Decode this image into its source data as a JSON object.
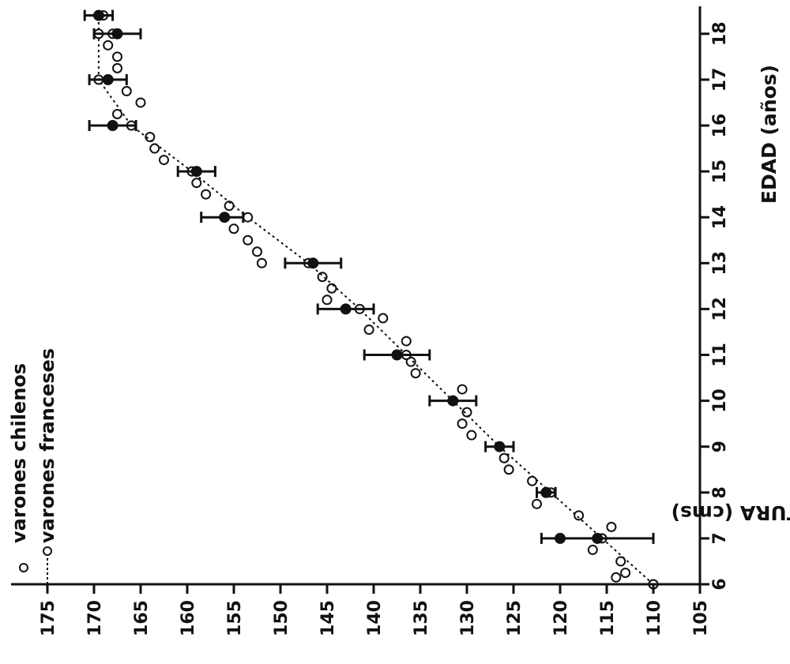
{
  "chart_data": {
    "type": "scatter",
    "orientation": "rotated-90-clockwise",
    "xlabel": "EDAD (años)",
    "ylabel": "ESTATURA (cms)",
    "x_ticks": [
      6,
      7,
      8,
      9,
      10,
      11,
      12,
      13,
      14,
      15,
      16,
      17,
      18
    ],
    "y_ticks": [
      105,
      110,
      115,
      120,
      125,
      130,
      135,
      140,
      145,
      150,
      155,
      160,
      165,
      170,
      175
    ],
    "xlim": [
      6,
      18.5
    ],
    "ylim": [
      105,
      176.5
    ],
    "legend": [
      {
        "label": "varones chilenos",
        "marker": "open-circle"
      },
      {
        "label": "varones franceses",
        "marker": "open-circle-dashed-line"
      }
    ],
    "series": [
      {
        "name": "varones chilenos",
        "marker": "open-circle",
        "points": [
          {
            "x": 6.0,
            "y": 110.0
          },
          {
            "x": 6.15,
            "y": 114.0
          },
          {
            "x": 6.25,
            "y": 113.0
          },
          {
            "x": 6.5,
            "y": 113.5
          },
          {
            "x": 6.75,
            "y": 116.5
          },
          {
            "x": 7.25,
            "y": 114.5
          },
          {
            "x": 7.5,
            "y": 118.0
          },
          {
            "x": 7.75,
            "y": 122.5
          },
          {
            "x": 8.25,
            "y": 123.0
          },
          {
            "x": 8.5,
            "y": 125.5
          },
          {
            "x": 8.75,
            "y": 126.0
          },
          {
            "x": 9.25,
            "y": 129.5
          },
          {
            "x": 9.5,
            "y": 130.5
          },
          {
            "x": 9.75,
            "y": 130.0
          },
          {
            "x": 10.25,
            "y": 130.5
          },
          {
            "x": 10.6,
            "y": 135.5
          },
          {
            "x": 10.85,
            "y": 136.0
          },
          {
            "x": 11.3,
            "y": 136.5
          },
          {
            "x": 11.55,
            "y": 140.5
          },
          {
            "x": 11.8,
            "y": 139.0
          },
          {
            "x": 12.2,
            "y": 145.0
          },
          {
            "x": 12.45,
            "y": 144.5
          },
          {
            "x": 12.7,
            "y": 145.5
          },
          {
            "x": 13.0,
            "y": 152.0
          },
          {
            "x": 13.25,
            "y": 152.5
          },
          {
            "x": 13.5,
            "y": 153.5
          },
          {
            "x": 13.75,
            "y": 155.0
          },
          {
            "x": 14.25,
            "y": 155.5
          },
          {
            "x": 14.5,
            "y": 158.0
          },
          {
            "x": 14.75,
            "y": 159.0
          },
          {
            "x": 15.25,
            "y": 162.5
          },
          {
            "x": 15.5,
            "y": 163.5
          },
          {
            "x": 15.75,
            "y": 164.0
          },
          {
            "x": 16.25,
            "y": 167.5
          },
          {
            "x": 16.5,
            "y": 165.0
          },
          {
            "x": 16.75,
            "y": 166.5
          },
          {
            "x": 17.25,
            "y": 167.5
          },
          {
            "x": 17.5,
            "y": 167.5
          },
          {
            "x": 17.75,
            "y": 168.5
          },
          {
            "x": 18.0,
            "y": 168.0
          },
          {
            "x": 18.4,
            "y": 169.0
          }
        ]
      },
      {
        "name": "varones franceses",
        "marker": "open-circle",
        "line": "dotted",
        "points": [
          {
            "x": 6.0,
            "y": 110.0
          },
          {
            "x": 7.0,
            "y": 115.5
          },
          {
            "x": 8.0,
            "y": 121.0
          },
          {
            "x": 9.0,
            "y": 126.5
          },
          {
            "x": 10.0,
            "y": 131.5
          },
          {
            "x": 11.0,
            "y": 136.5
          },
          {
            "x": 12.0,
            "y": 141.5
          },
          {
            "x": 13.0,
            "y": 147.0
          },
          {
            "x": 14.0,
            "y": 153.5
          },
          {
            "x": 15.0,
            "y": 159.5
          },
          {
            "x": 16.0,
            "y": 166.0
          },
          {
            "x": 17.0,
            "y": 169.5
          },
          {
            "x": 18.0,
            "y": 169.5
          },
          {
            "x": 18.4,
            "y": 169.5
          }
        ]
      },
      {
        "name": "",
        "marker": "filled-circle",
        "error_bars": true,
        "points": [
          {
            "x": 7.0,
            "y": 116.0,
            "low": 110.0,
            "high": 122.0
          },
          {
            "x": 7.0,
            "y": 120.0,
            "low": 120.0,
            "high": 120.0
          },
          {
            "x": 8.0,
            "y": 121.5,
            "low": 120.5,
            "high": 122.5
          },
          {
            "x": 9.0,
            "y": 126.5,
            "low": 125.0,
            "high": 128.0
          },
          {
            "x": 10.0,
            "y": 131.5,
            "low": 129.0,
            "high": 134.0
          },
          {
            "x": 11.0,
            "y": 137.5,
            "low": 134.0,
            "high": 141.0
          },
          {
            "x": 12.0,
            "y": 143.0,
            "low": 140.0,
            "high": 146.0
          },
          {
            "x": 13.0,
            "y": 146.5,
            "low": 143.5,
            "high": 149.5
          },
          {
            "x": 14.0,
            "y": 156.0,
            "low": 154.0,
            "high": 158.5
          },
          {
            "x": 15.0,
            "y": 159.0,
            "low": 157.0,
            "high": 161.0
          },
          {
            "x": 16.0,
            "y": 168.0,
            "low": 165.5,
            "high": 170.5
          },
          {
            "x": 17.0,
            "y": 168.5,
            "low": 166.5,
            "high": 170.5
          },
          {
            "x": 18.0,
            "y": 167.5,
            "low": 165.0,
            "high": 170.0
          },
          {
            "x": 18.4,
            "y": 169.5,
            "low": 168.0,
            "high": 171.0
          }
        ]
      }
    ],
    "colors": {
      "ink": "#111111",
      "background": "#ffffff"
    }
  }
}
